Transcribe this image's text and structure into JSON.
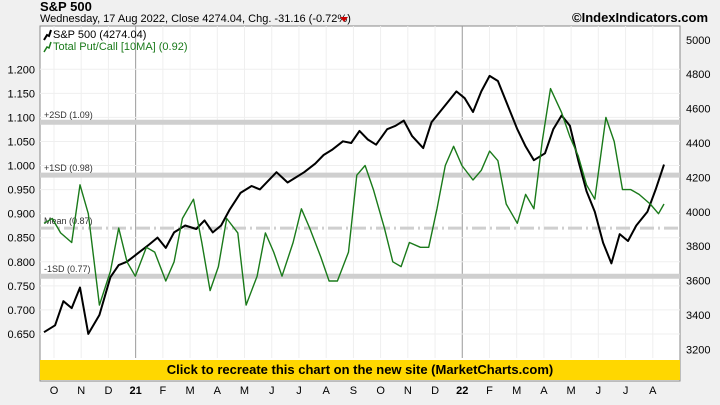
{
  "header": {
    "title": "S&P 500",
    "subtitle": "Wednesday, 17 Aug 2022, Close 4274.04, Chg. -31.16 (-0.72%)",
    "brand": "©IndexIndicators.com"
  },
  "colors": {
    "sp500": "#000000",
    "putcall": "#1a7a1a",
    "band": "#cfcfcf",
    "banner": "#ffd700",
    "down_arrow": "#cc0000"
  },
  "banner": {
    "label": "Click to recreate this chart on the new site (MarketCharts.com)"
  },
  "chart_data": {
    "type": "line",
    "left_axis": {
      "ylim": [
        0.6,
        1.29
      ],
      "ticks": [
        0.65,
        0.7,
        0.75,
        0.8,
        0.85,
        0.9,
        0.95,
        1.0,
        1.05,
        1.1,
        1.15,
        1.2
      ],
      "tick_labels": [
        "0.650",
        "0.700",
        "0.750",
        "0.800",
        "0.850",
        "0.900",
        "0.950",
        "1.000",
        "1.050",
        "1.100",
        "1.150",
        "1.200"
      ]
    },
    "right_axis": {
      "ylim": [
        3150,
        5080
      ],
      "ticks": [
        3200,
        3400,
        3600,
        3800,
        4000,
        4200,
        4400,
        4600,
        4800,
        5000
      ],
      "tick_labels": [
        "3200",
        "3400",
        "3600",
        "3800",
        "4000",
        "4200",
        "4400",
        "4600",
        "4800",
        "5000"
      ]
    },
    "x_axis": {
      "labels": [
        "O",
        "N",
        "D",
        "21",
        "F",
        "M",
        "A",
        "M",
        "J",
        "J",
        "A",
        "S",
        "O",
        "N",
        "D",
        "22",
        "F",
        "M",
        "A",
        "M",
        "J",
        "J",
        "A"
      ],
      "bold_labels": [
        "21",
        "22"
      ],
      "year_marks": [
        "21",
        "22"
      ]
    },
    "bands": [
      {
        "label": "+2SD (1.09)",
        "value": 1.09
      },
      {
        "label": "+1SD (0.98)",
        "value": 0.98
      },
      {
        "label": "Mean (0.87)",
        "value": 0.87,
        "style": "dashed"
      },
      {
        "label": "-1SD (0.77)",
        "value": 0.77
      }
    ],
    "series": [
      {
        "name": "S&P 500 (4274.04)",
        "axis": "right",
        "x": [
          0,
          4,
          7,
          10,
          13,
          16,
          20,
          24,
          27,
          30,
          34,
          38,
          41,
          44,
          47,
          51,
          55,
          58,
          61,
          64,
          67,
          71,
          75,
          78,
          81,
          84,
          88,
          91,
          94,
          98,
          101,
          104,
          108,
          111,
          114,
          117,
          120,
          124,
          127,
          130,
          133,
          137,
          140,
          143,
          146,
          149,
          152,
          155,
          158,
          161,
          164,
          168,
          171,
          174,
          177,
          181,
          184,
          187,
          190,
          193,
          196,
          199,
          202,
          205,
          208,
          211,
          214,
          218,
          221,
          224
        ],
        "values": [
          3300,
          3340,
          3480,
          3440,
          3560,
          3290,
          3400,
          3620,
          3690,
          3710,
          3760,
          3810,
          3850,
          3790,
          3880,
          3920,
          3900,
          3950,
          3880,
          3920,
          4010,
          4110,
          4150,
          4130,
          4180,
          4230,
          4170,
          4200,
          4230,
          4280,
          4330,
          4360,
          4410,
          4400,
          4470,
          4420,
          4390,
          4480,
          4500,
          4530,
          4440,
          4370,
          4520,
          4580,
          4640,
          4700,
          4660,
          4580,
          4700,
          4790,
          4760,
          4600,
          4480,
          4380,
          4300,
          4340,
          4480,
          4560,
          4500,
          4300,
          4120,
          4000,
          3820,
          3700,
          3870,
          3830,
          3920,
          4000,
          4130,
          4274
        ]
      },
      {
        "name": "Total Put/Call [10MA] (0.92)",
        "axis": "left",
        "x": [
          0,
          3,
          6,
          10,
          13,
          16,
          20,
          24,
          27,
          30,
          33,
          37,
          40,
          44,
          47,
          50,
          54,
          57,
          60,
          63,
          66,
          70,
          73,
          77,
          80,
          83,
          86,
          90,
          93,
          96,
          100,
          103,
          106,
          110,
          113,
          116,
          119,
          123,
          126,
          129,
          132,
          136,
          139,
          142,
          145,
          148,
          151,
          155,
          158,
          161,
          164,
          167,
          171,
          174,
          177,
          180,
          183,
          187,
          190,
          193,
          196,
          199,
          203,
          206,
          209,
          212,
          215,
          219,
          222,
          224
        ],
        "values": [
          0.88,
          0.89,
          0.86,
          0.84,
          0.96,
          0.9,
          0.71,
          0.78,
          0.87,
          0.8,
          0.77,
          0.83,
          0.82,
          0.76,
          0.8,
          0.89,
          0.93,
          0.84,
          0.74,
          0.79,
          0.89,
          0.86,
          0.71,
          0.77,
          0.86,
          0.82,
          0.77,
          0.84,
          0.91,
          0.87,
          0.81,
          0.76,
          0.76,
          0.82,
          0.98,
          1.0,
          0.95,
          0.87,
          0.8,
          0.79,
          0.84,
          0.83,
          0.83,
          0.91,
          1.0,
          1.04,
          1.0,
          0.97,
          0.99,
          1.03,
          1.01,
          0.92,
          0.88,
          0.94,
          0.91,
          1.05,
          1.16,
          1.11,
          1.06,
          1.02,
          0.96,
          0.93,
          1.1,
          1.05,
          0.95,
          0.95,
          0.94,
          0.92,
          0.9,
          0.92
        ]
      }
    ]
  }
}
